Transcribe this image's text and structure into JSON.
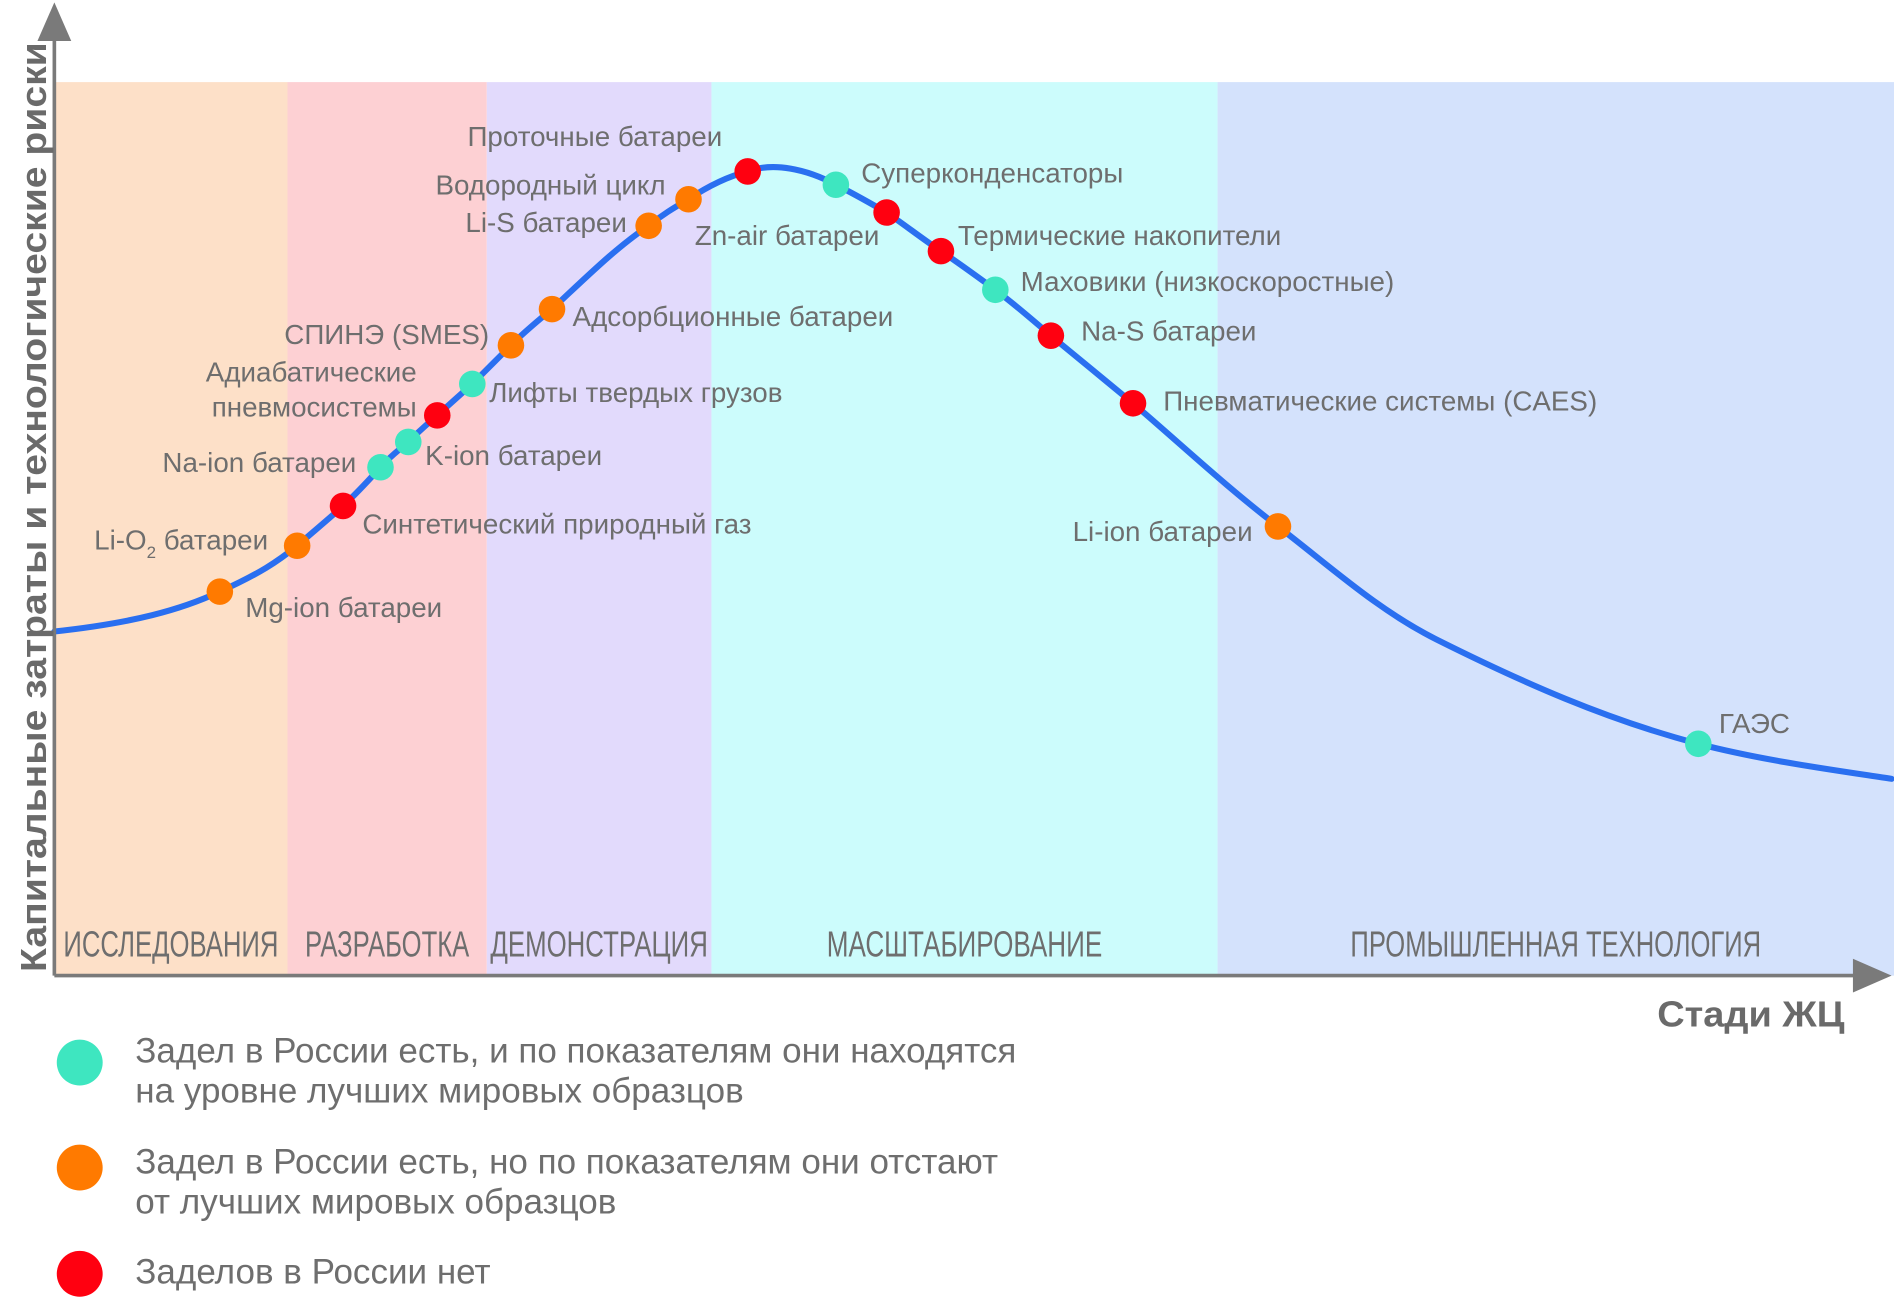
{
  "axes": {
    "y_label": "Капитальные затраты и технологические риски",
    "x_label": "Стади ЖЦ"
  },
  "stages": [
    {
      "label": "ИССЛЕДОВАНИЯ",
      "color": "#fde0c8"
    },
    {
      "label": "РАЗРАБОТКА",
      "color": "#fdd0d3"
    },
    {
      "label": "ДЕМОНСТРАЦИЯ",
      "color": "#e2dafc"
    },
    {
      "label": "МАСШТАБИРОВАНИЕ",
      "color": "#ccfcfc"
    },
    {
      "label": "ПРОМЫШЛЕННАЯ ТЕХНОЛОГИЯ",
      "color": "#d4e2fc"
    }
  ],
  "status_colors": {
    "best": "#3ee6c0",
    "behind": "#ff7a00",
    "none": "#ff0010"
  },
  "curve_color": "#2a6ff0",
  "items": [
    {
      "label": "Mg-ion батареи",
      "status": "behind"
    },
    {
      "label": "Li-O",
      "sub": "2",
      "tail": " батареи",
      "status": "behind"
    },
    {
      "label": "Синтетический природный газ",
      "status": "none"
    },
    {
      "label": "Na-ion батареи",
      "status": "best"
    },
    {
      "label": "K-ion батареи",
      "status": "best"
    },
    {
      "label": "Адиабатические",
      "label2": "пневмосистемы",
      "status": "none"
    },
    {
      "label": "Лифты твердых грузов",
      "status": "best"
    },
    {
      "label": "СПИНЭ (SMES)",
      "status": "behind"
    },
    {
      "label": "Адсорбционные батареи",
      "status": "behind"
    },
    {
      "label": "Li-S батареи",
      "status": "behind"
    },
    {
      "label": "Водородный цикл",
      "status": "behind"
    },
    {
      "label": "Проточные батареи",
      "status": "none"
    },
    {
      "label": "Суперконденсаторы",
      "status": "best"
    },
    {
      "label": "Zn-air батареи",
      "status": "none"
    },
    {
      "label": "Термические накопители",
      "status": "none"
    },
    {
      "label": "Маховики (низкоскоростные)",
      "status": "best"
    },
    {
      "label": "Na-S батареи",
      "status": "none"
    },
    {
      "label": "Пневматические системы (CAES)",
      "status": "none"
    },
    {
      "label": "Li-ion батареи",
      "status": "behind"
    },
    {
      "label": "ГАЭС",
      "status": "best"
    }
  ],
  "legend": [
    {
      "status": "best",
      "line1": "Задел в России есть, и по показателям они находятся",
      "line2": "на уровне лучших мировых образцов"
    },
    {
      "status": "behind",
      "line1": "Задел в России есть, но по показателям они отстают",
      "line2": "от лучших мировых образцов"
    },
    {
      "status": "none",
      "line1": "Заделов в России нет",
      "line2": ""
    }
  ]
}
